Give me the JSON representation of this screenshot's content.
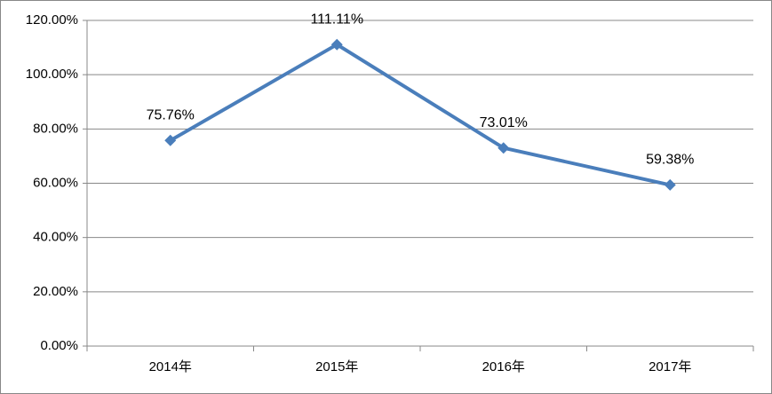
{
  "chart_data": {
    "type": "line",
    "categories": [
      "2014年",
      "2015年",
      "2016年",
      "2017年"
    ],
    "series": [
      {
        "color": "#4a7ebb",
        "values": [
          75.76,
          111.11,
          73.01,
          59.38
        ],
        "value_labels": [
          "75.76%",
          "111.11%",
          "73.01%",
          "59.38%"
        ]
      }
    ],
    "ylim": [
      0,
      120
    ],
    "yticks": [
      {
        "value": 0,
        "label": "0.00%"
      },
      {
        "value": 20,
        "label": "20.00%"
      },
      {
        "value": 40,
        "label": "40.00%"
      },
      {
        "value": 60,
        "label": "60.00%"
      },
      {
        "value": 80,
        "label": "80.00%"
      },
      {
        "value": 100,
        "label": "100.00%"
      },
      {
        "value": 120,
        "label": "120.00%"
      }
    ],
    "grid": true
  }
}
